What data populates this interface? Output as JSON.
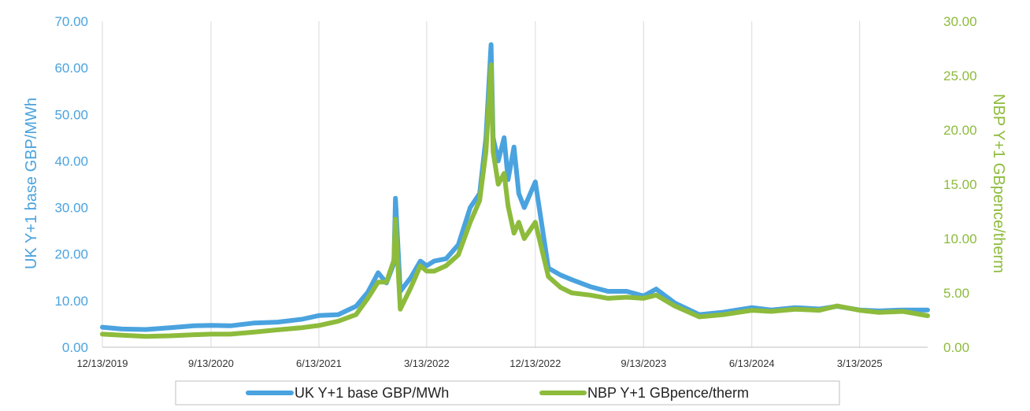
{
  "chart_data": {
    "type": "line",
    "title": "",
    "xlabel": "",
    "ylabel_left": "UK Y+1 base GBP/MWh",
    "ylabel_right": "NBP Y+1 GBpence/therm",
    "ylim_left": [
      0,
      70
    ],
    "ylim_right": [
      0,
      30
    ],
    "grid": "vertical-only",
    "legend_position": "bottom",
    "x_ticks": [
      "12/13/2019",
      "9/13/2020",
      "6/13/2021",
      "3/13/2022",
      "12/13/2022",
      "9/13/2023",
      "6/13/2024",
      "3/13/2025"
    ],
    "y_ticks_left": [
      "0.00",
      "10.00",
      "20.00",
      "30.00",
      "40.00",
      "50.00",
      "60.00",
      "70.00"
    ],
    "y_ticks_right": [
      "0.00",
      "5.00",
      "10.00",
      "15.00",
      "20.00",
      "25.00",
      "30.00"
    ],
    "series": [
      {
        "name": "UK Y+1 base GBP/MWh",
        "axis": "left",
        "color": "#4aa3df",
        "x": [
          "2019-12-13",
          "2020-02-01",
          "2020-04-01",
          "2020-06-01",
          "2020-08-01",
          "2020-09-13",
          "2020-11-01",
          "2021-01-01",
          "2021-03-01",
          "2021-05-01",
          "2021-06-13",
          "2021-08-01",
          "2021-09-15",
          "2021-10-15",
          "2021-11-10",
          "2021-12-01",
          "2021-12-20",
          "2021-12-24",
          "2022-01-05",
          "2022-02-01",
          "2022-02-25",
          "2022-03-13",
          "2022-04-01",
          "2022-05-01",
          "2022-06-01",
          "2022-07-01",
          "2022-07-25",
          "2022-08-10",
          "2022-08-23",
          "2022-08-28",
          "2022-09-10",
          "2022-09-25",
          "2022-10-05",
          "2022-10-20",
          "2022-11-01",
          "2022-11-15",
          "2022-12-13",
          "2023-01-15",
          "2023-02-15",
          "2023-03-15",
          "2023-05-01",
          "2023-06-15",
          "2023-08-01",
          "2023-09-13",
          "2023-10-15",
          "2023-12-01",
          "2024-02-01",
          "2024-04-01",
          "2024-06-13",
          "2024-08-01",
          "2024-10-01",
          "2024-12-01",
          "2025-01-15",
          "2025-03-13",
          "2025-05-01",
          "2025-07-01",
          "2025-09-01"
        ],
        "values": [
          4.3,
          3.9,
          3.8,
          4.2,
          4.6,
          4.7,
          4.6,
          5.2,
          5.4,
          6.0,
          6.8,
          7.0,
          8.8,
          11.8,
          16.0,
          13.8,
          18.0,
          32.0,
          12.0,
          15.0,
          18.5,
          17.5,
          18.5,
          19.0,
          22.0,
          30.0,
          33.0,
          45.0,
          65.0,
          45.0,
          40.0,
          45.0,
          36.0,
          43.0,
          33.0,
          30.0,
          35.5,
          17.0,
          15.5,
          14.5,
          13.0,
          12.0,
          12.0,
          11.0,
          12.5,
          9.5,
          7.0,
          7.5,
          8.5,
          8.0,
          8.5,
          8.2,
          8.8,
          8.0,
          7.8,
          8.0,
          8.0
        ]
      },
      {
        "name": "NBP Y+1 GBpence/therm",
        "axis": "right",
        "color": "#8dbb3c",
        "x": [
          "2019-12-13",
          "2020-02-01",
          "2020-04-01",
          "2020-06-01",
          "2020-08-01",
          "2020-09-13",
          "2020-11-01",
          "2021-01-01",
          "2021-03-01",
          "2021-05-01",
          "2021-06-13",
          "2021-08-01",
          "2021-09-15",
          "2021-10-15",
          "2021-11-10",
          "2021-12-01",
          "2021-12-20",
          "2021-12-24",
          "2022-01-05",
          "2022-02-01",
          "2022-02-25",
          "2022-03-13",
          "2022-04-01",
          "2022-05-01",
          "2022-06-01",
          "2022-07-01",
          "2022-07-25",
          "2022-08-10",
          "2022-08-23",
          "2022-08-28",
          "2022-09-10",
          "2022-09-25",
          "2022-10-05",
          "2022-10-20",
          "2022-11-01",
          "2022-11-15",
          "2022-12-13",
          "2023-01-15",
          "2023-02-15",
          "2023-03-15",
          "2023-05-01",
          "2023-06-15",
          "2023-08-01",
          "2023-09-13",
          "2023-10-15",
          "2023-12-01",
          "2024-02-01",
          "2024-04-01",
          "2024-06-13",
          "2024-08-01",
          "2024-10-01",
          "2024-12-01",
          "2025-01-15",
          "2025-03-13",
          "2025-05-01",
          "2025-07-01",
          "2025-09-01"
        ],
        "values": [
          1.2,
          1.1,
          1.0,
          1.05,
          1.15,
          1.2,
          1.2,
          1.4,
          1.6,
          1.8,
          2.0,
          2.4,
          3.0,
          4.5,
          6.0,
          6.0,
          8.0,
          11.8,
          3.5,
          5.5,
          7.5,
          7.0,
          7.0,
          7.5,
          8.5,
          11.5,
          13.5,
          18.0,
          26.0,
          18.0,
          15.0,
          16.0,
          13.0,
          10.5,
          11.5,
          10.0,
          11.5,
          6.5,
          5.5,
          5.0,
          4.8,
          4.5,
          4.6,
          4.5,
          4.8,
          3.8,
          2.8,
          3.0,
          3.4,
          3.3,
          3.5,
          3.4,
          3.8,
          3.4,
          3.2,
          3.3,
          2.9
        ]
      }
    ]
  }
}
